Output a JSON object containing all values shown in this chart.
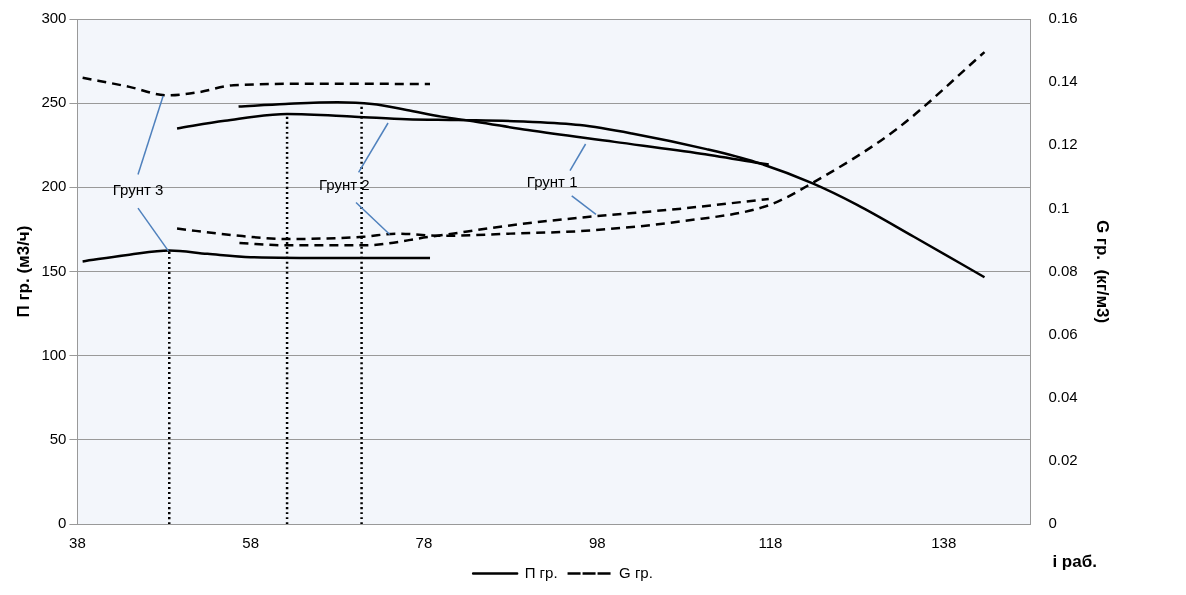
{
  "chart_data": {
    "type": "line",
    "xlabel": "i раб.",
    "ylabel": "П гр. (м3/ч)",
    "y2label": "G гр.  (кг/м3)",
    "xlim": [
      38,
      148
    ],
    "xticks": [
      38,
      58,
      78,
      98,
      118,
      138
    ],
    "ylim": [
      0,
      300
    ],
    "yticks": [
      0,
      50,
      100,
      150,
      200,
      250,
      300
    ],
    "y2lim": [
      0,
      0.16
    ],
    "y2ticks": [
      0,
      0.02,
      0.04,
      0.06,
      0.08,
      0.1,
      0.12,
      0.14,
      0.16
    ],
    "grid": "y",
    "legend": "bottom",
    "marker": "none",
    "series": [
      {
        "name": "П гр.",
        "color": "#000000",
        "line_style": "solid",
        "x": [
          38.6,
          44,
          48.6,
          53,
          58,
          68,
          78.7
        ],
        "values": [
          156,
          160,
          162.5,
          160.5,
          158.5,
          158,
          158
        ]
      },
      {
        "color": "#000000",
        "line_style": "solid",
        "x": [
          49.5,
          55,
          62.2,
          70,
          76,
          82,
          90,
          96,
          102,
          110.6,
          116.3,
          122.8,
          128,
          134.6,
          142.7
        ],
        "values": [
          235,
          239.5,
          243.5,
          242,
          240.5,
          240,
          239,
          237,
          232,
          222.7,
          215,
          202.5,
          189.6,
          170.5,
          146.6
        ]
      },
      {
        "color": "#000000",
        "line_style": "solid",
        "x": [
          56.6,
          62,
          68,
          72,
          76,
          80,
          84,
          90,
          100,
          110,
          117.8
        ],
        "values": [
          248,
          249.5,
          250.5,
          249.5,
          246,
          242,
          239,
          234,
          227,
          220,
          213.5
        ]
      },
      {
        "name": "G гр.",
        "color": "#000000",
        "line_style": "dashed",
        "axis": "y2",
        "x": [
          38.6,
          44,
          48.4,
          52,
          56,
          66,
          78.7
        ],
        "values": [
          0.1414,
          0.1385,
          0.1358,
          0.1368,
          0.139,
          0.1395,
          0.1394
        ]
      },
      {
        "color": "#000000",
        "line_style": "dashed",
        "axis": "y2",
        "x": [
          49.5,
          56,
          62.2,
          71,
          74.8,
          80.1,
          88,
          96.6,
          108,
          117.8,
          122.8,
          132.5,
          142.7
        ],
        "values": [
          0.0936,
          0.0915,
          0.0903,
          0.091,
          0.092,
          0.0913,
          0.092,
          0.0929,
          0.096,
          0.101,
          0.108,
          0.125,
          0.1495
        ]
      },
      {
        "color": "#000000",
        "line_style": "dashed",
        "axis": "y2",
        "x": [
          56.7,
          62.2,
          71,
          78.7,
          88.8,
          96.6,
          108,
          117.8
        ],
        "values": [
          0.089,
          0.0883,
          0.0883,
          0.091,
          0.0949,
          0.0972,
          0.1,
          0.103
        ]
      },
      {
        "color": "#000000",
        "line_style": "dotted",
        "x": [
          48.6,
          48.6
        ],
        "values": [
          0,
          162.5
        ]
      },
      {
        "color": "#000000",
        "line_style": "dotted",
        "x": [
          62.2,
          62.2
        ],
        "values": [
          0,
          243.5
        ]
      },
      {
        "color": "#000000",
        "line_style": "dotted",
        "x": [
          70.8,
          70.8
        ],
        "values": [
          0,
          249.7
        ]
      }
    ],
    "annotations": [
      {
        "text": "Грунт 3",
        "x": 48.5,
        "y": 162.5
      },
      {
        "text": "Грунт 2",
        "x": 74,
        "y": 241
      },
      {
        "text": "Грунт 1",
        "x": 96.7,
        "y": 228
      }
    ]
  }
}
